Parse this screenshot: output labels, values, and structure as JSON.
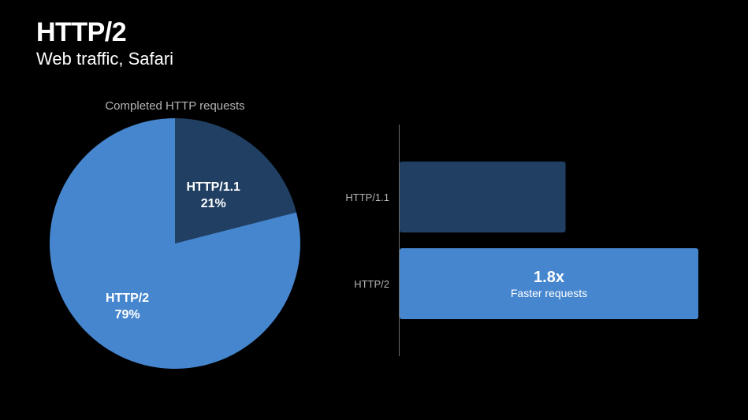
{
  "header": {
    "title": "HTTP/2",
    "subtitle": "Web traffic, Safari"
  },
  "colors": {
    "background": "#000000",
    "http2_blue": "#4686cf",
    "http11_navy": "#213f63",
    "text": "#ffffff",
    "muted_text": "#b5b5b5"
  },
  "chart_data": [
    {
      "type": "pie",
      "title": "Completed HTTP requests",
      "slices": [
        {
          "label": "HTTP/1.1",
          "value": 21,
          "value_label": "21%",
          "color": "#213f63"
        },
        {
          "label": "HTTP/2",
          "value": 79,
          "value_label": "79%",
          "color": "#4686cf"
        }
      ]
    },
    {
      "type": "bar",
      "orientation": "horizontal",
      "categories": [
        "HTTP/1.1",
        "HTTP/2"
      ],
      "values": [
        1.0,
        1.8
      ],
      "colors": [
        "#213f63",
        "#4686cf"
      ],
      "annotation": {
        "category": "HTTP/2",
        "value_text": "1.8x",
        "caption": "Faster requests"
      }
    }
  ]
}
